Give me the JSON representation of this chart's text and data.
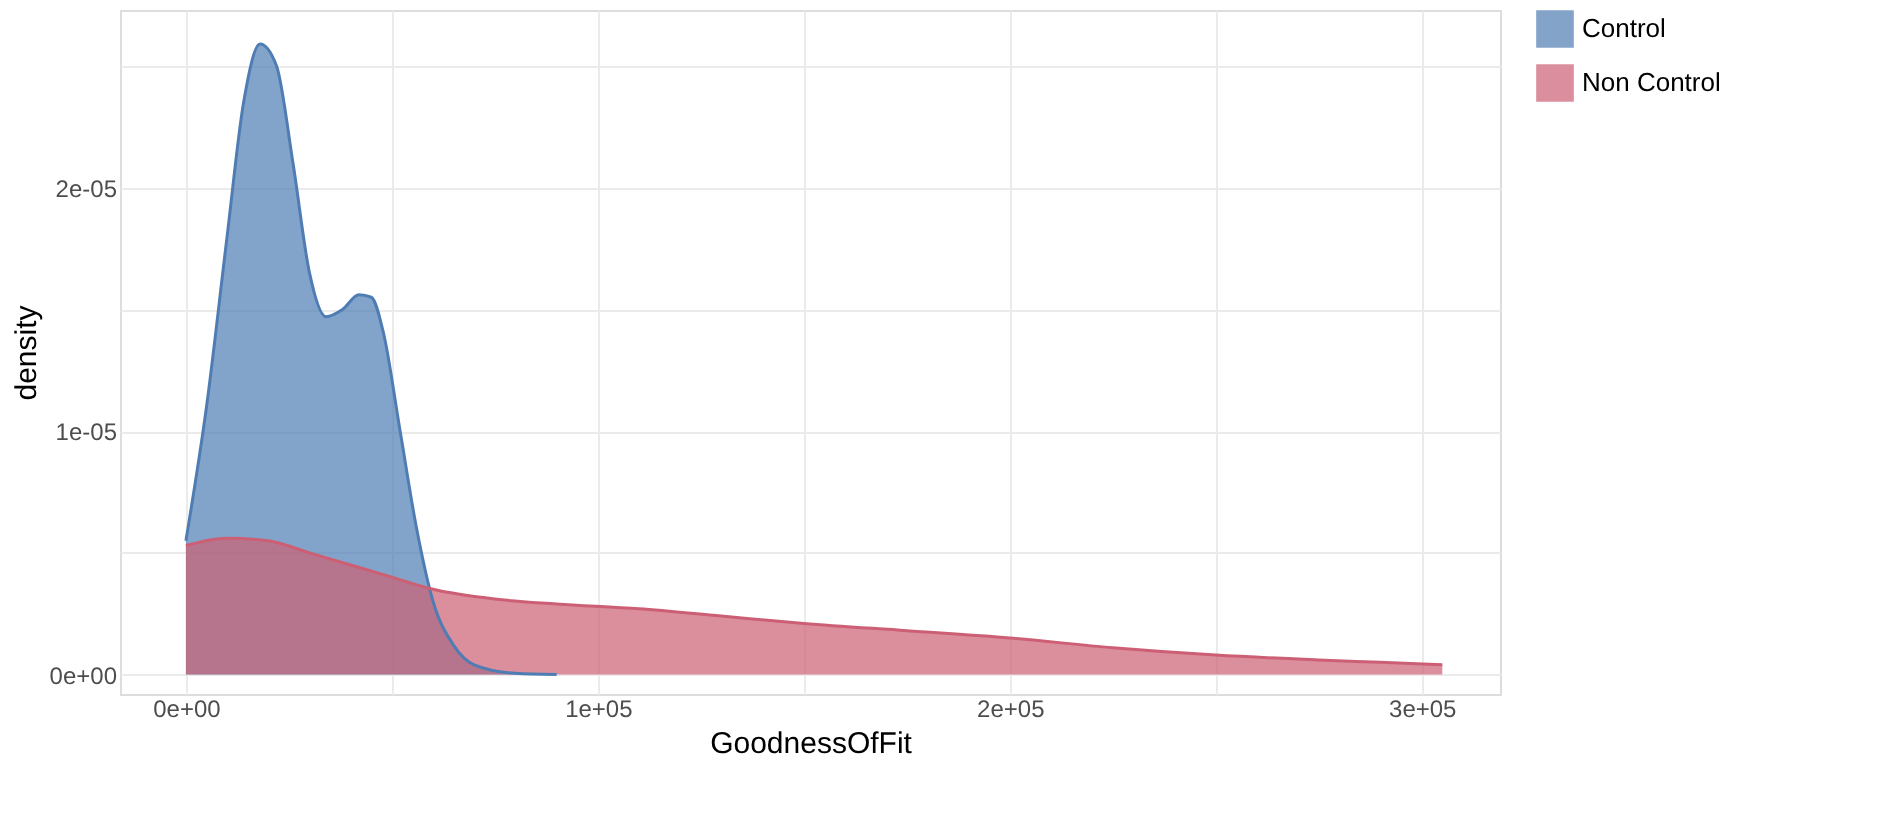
{
  "chart_data": {
    "type": "area",
    "xlabel": "GoodnessOfFit",
    "ylabel": "density",
    "xlim": [
      -16000,
      319000
    ],
    "ylim": [
      -8e-07,
      2.73e-05
    ],
    "xticks": [
      {
        "value": 0,
        "label": "0e+00"
      },
      {
        "value": 50000,
        "label": null
      },
      {
        "value": 100000,
        "label": "1e+05"
      },
      {
        "value": 150000,
        "label": null
      },
      {
        "value": 200000,
        "label": "2e+05"
      },
      {
        "value": 250000,
        "label": null
      },
      {
        "value": 300000,
        "label": "3e+05"
      }
    ],
    "yticks": [
      {
        "value": 0,
        "label": "0e+00"
      },
      {
        "value": 5e-06,
        "label": null
      },
      {
        "value": 1e-05,
        "label": "1e-05"
      },
      {
        "value": 1.5e-05,
        "label": null
      },
      {
        "value": 2e-05,
        "label": "2e-05"
      },
      {
        "value": 2.5e-05,
        "label": null
      }
    ],
    "grid": true,
    "legend": "right",
    "series": [
      {
        "name": "Control",
        "color": "#4f7db3",
        "x": [
          0,
          5000,
          10000,
          14000,
          18000,
          22000,
          26000,
          30000,
          34000,
          38000,
          42000,
          45000,
          48000,
          52000,
          56000,
          60000,
          65000,
          70000,
          80000,
          90000
        ],
        "values": [
          5.5e-06,
          1.1e-05,
          1.8e-05,
          2.35e-05,
          2.59e-05,
          2.5e-05,
          2.1e-05,
          1.65e-05,
          1.47e-05,
          1.5e-05,
          1.56e-05,
          1.55e-05,
          1.4e-05,
          1e-05,
          6e-06,
          3e-06,
          1.2e-06,
          4e-07,
          5e-08,
          0
        ]
      },
      {
        "name": "Non Control",
        "color": "#cc5f74",
        "x": [
          0,
          10000,
          20000,
          30000,
          40000,
          50000,
          60000,
          75000,
          90000,
          110000,
          130000,
          150000,
          175000,
          200000,
          225000,
          250000,
          275000,
          290000,
          305000
        ],
        "values": [
          5.3e-06,
          5.6e-06,
          5.5e-06,
          5e-06,
          4.5e-06,
          4e-06,
          3.5e-06,
          3.1e-06,
          2.9e-06,
          2.7e-06,
          2.4e-06,
          2.1e-06,
          1.8e-06,
          1.5e-06,
          1.1e-06,
          8e-07,
          6e-07,
          5e-07,
          4e-07
        ]
      }
    ]
  }
}
